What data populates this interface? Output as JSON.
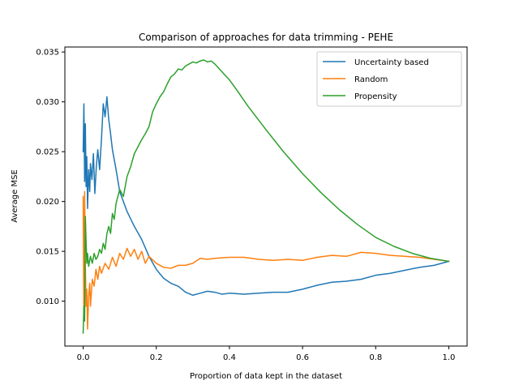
{
  "chart_data": {
    "type": "line",
    "title": "Comparison of approaches for data trimming - PEHE",
    "xlabel": "Proportion of data kept in the dataset",
    "ylabel": "Average MSE",
    "xlim": [
      -0.05,
      1.05
    ],
    "ylim": [
      0.0055,
      0.0355
    ],
    "xticks": [
      0.0,
      0.2,
      0.4,
      0.6,
      0.8,
      1.0
    ],
    "xtick_labels": [
      "0.0",
      "0.2",
      "0.4",
      "0.6",
      "0.8",
      "1.0"
    ],
    "yticks": [
      0.01,
      0.015,
      0.02,
      0.025,
      0.03,
      0.035
    ],
    "ytick_labels": [
      "0.010",
      "0.015",
      "0.020",
      "0.025",
      "0.030",
      "0.035"
    ],
    "grid": false,
    "legend_position": "top-right",
    "series": [
      {
        "name": "Uncertainty based",
        "color": "#1f77b4",
        "points": [
          [
            0.0,
            0.025
          ],
          [
            0.002,
            0.0298
          ],
          [
            0.004,
            0.022
          ],
          [
            0.006,
            0.0278
          ],
          [
            0.008,
            0.0215
          ],
          [
            0.01,
            0.0245
          ],
          [
            0.012,
            0.0193
          ],
          [
            0.015,
            0.0232
          ],
          [
            0.018,
            0.021
          ],
          [
            0.02,
            0.0238
          ],
          [
            0.024,
            0.0222
          ],
          [
            0.028,
            0.0248
          ],
          [
            0.032,
            0.0208
          ],
          [
            0.036,
            0.0235
          ],
          [
            0.04,
            0.0252
          ],
          [
            0.045,
            0.0232
          ],
          [
            0.05,
            0.0262
          ],
          [
            0.055,
            0.0298
          ],
          [
            0.06,
            0.0285
          ],
          [
            0.065,
            0.0305
          ],
          [
            0.07,
            0.0282
          ],
          [
            0.075,
            0.0268
          ],
          [
            0.08,
            0.0252
          ],
          [
            0.09,
            0.0232
          ],
          [
            0.1,
            0.021
          ],
          [
            0.12,
            0.019
          ],
          [
            0.14,
            0.0175
          ],
          [
            0.16,
            0.0162
          ],
          [
            0.18,
            0.0145
          ],
          [
            0.2,
            0.0132
          ],
          [
            0.22,
            0.0123
          ],
          [
            0.24,
            0.0118
          ],
          [
            0.26,
            0.0115
          ],
          [
            0.28,
            0.0109
          ],
          [
            0.3,
            0.0106
          ],
          [
            0.32,
            0.0108
          ],
          [
            0.34,
            0.011
          ],
          [
            0.36,
            0.0109
          ],
          [
            0.38,
            0.0107
          ],
          [
            0.4,
            0.0108
          ],
          [
            0.44,
            0.0107
          ],
          [
            0.48,
            0.0108
          ],
          [
            0.52,
            0.0109
          ],
          [
            0.56,
            0.0109
          ],
          [
            0.6,
            0.0112
          ],
          [
            0.64,
            0.0116
          ],
          [
            0.68,
            0.0119
          ],
          [
            0.72,
            0.012
          ],
          [
            0.76,
            0.0122
          ],
          [
            0.8,
            0.0126
          ],
          [
            0.84,
            0.0128
          ],
          [
            0.88,
            0.0131
          ],
          [
            0.92,
            0.0134
          ],
          [
            0.96,
            0.0136
          ],
          [
            1.0,
            0.014
          ]
        ]
      },
      {
        "name": "Random",
        "color": "#ff7f0e",
        "points": [
          [
            0.0,
            0.0205
          ],
          [
            0.002,
            0.0085
          ],
          [
            0.004,
            0.021
          ],
          [
            0.006,
            0.0135
          ],
          [
            0.008,
            0.0095
          ],
          [
            0.01,
            0.0112
          ],
          [
            0.012,
            0.0072
          ],
          [
            0.015,
            0.0105
          ],
          [
            0.018,
            0.0118
          ],
          [
            0.02,
            0.0095
          ],
          [
            0.025,
            0.0122
          ],
          [
            0.03,
            0.0115
          ],
          [
            0.035,
            0.0132
          ],
          [
            0.04,
            0.0122
          ],
          [
            0.045,
            0.0135
          ],
          [
            0.05,
            0.0128
          ],
          [
            0.06,
            0.0138
          ],
          [
            0.07,
            0.0132
          ],
          [
            0.08,
            0.0144
          ],
          [
            0.09,
            0.0135
          ],
          [
            0.1,
            0.0148
          ],
          [
            0.11,
            0.0142
          ],
          [
            0.12,
            0.0153
          ],
          [
            0.13,
            0.0145
          ],
          [
            0.14,
            0.0152
          ],
          [
            0.15,
            0.0142
          ],
          [
            0.16,
            0.015
          ],
          [
            0.17,
            0.0138
          ],
          [
            0.18,
            0.0145
          ],
          [
            0.2,
            0.0138
          ],
          [
            0.22,
            0.0134
          ],
          [
            0.24,
            0.0133
          ],
          [
            0.26,
            0.0136
          ],
          [
            0.28,
            0.0136
          ],
          [
            0.3,
            0.0138
          ],
          [
            0.32,
            0.0143
          ],
          [
            0.34,
            0.0142
          ],
          [
            0.36,
            0.0143
          ],
          [
            0.4,
            0.0144
          ],
          [
            0.44,
            0.0144
          ],
          [
            0.48,
            0.0142
          ],
          [
            0.52,
            0.0141
          ],
          [
            0.56,
            0.0142
          ],
          [
            0.6,
            0.0141
          ],
          [
            0.64,
            0.0144
          ],
          [
            0.68,
            0.0146
          ],
          [
            0.72,
            0.0145
          ],
          [
            0.76,
            0.0149
          ],
          [
            0.8,
            0.0148
          ],
          [
            0.84,
            0.0146
          ],
          [
            0.88,
            0.0145
          ],
          [
            0.92,
            0.0144
          ],
          [
            0.96,
            0.0142
          ],
          [
            1.0,
            0.014
          ]
        ]
      },
      {
        "name": "Propensity",
        "color": "#2ca02c",
        "points": [
          [
            0.0,
            0.0068
          ],
          [
            0.002,
            0.0095
          ],
          [
            0.004,
            0.008
          ],
          [
            0.006,
            0.0185
          ],
          [
            0.008,
            0.016
          ],
          [
            0.01,
            0.0138
          ],
          [
            0.012,
            0.0148
          ],
          [
            0.015,
            0.0135
          ],
          [
            0.02,
            0.0145
          ],
          [
            0.025,
            0.0138
          ],
          [
            0.03,
            0.0148
          ],
          [
            0.035,
            0.0142
          ],
          [
            0.04,
            0.0145
          ],
          [
            0.045,
            0.0152
          ],
          [
            0.05,
            0.0148
          ],
          [
            0.055,
            0.0158
          ],
          [
            0.06,
            0.0152
          ],
          [
            0.065,
            0.0168
          ],
          [
            0.07,
            0.0175
          ],
          [
            0.075,
            0.0168
          ],
          [
            0.08,
            0.0188
          ],
          [
            0.085,
            0.0182
          ],
          [
            0.09,
            0.0198
          ],
          [
            0.1,
            0.0212
          ],
          [
            0.11,
            0.0205
          ],
          [
            0.12,
            0.0225
          ],
          [
            0.13,
            0.0235
          ],
          [
            0.14,
            0.0248
          ],
          [
            0.15,
            0.0255
          ],
          [
            0.16,
            0.0262
          ],
          [
            0.17,
            0.0268
          ],
          [
            0.18,
            0.0275
          ],
          [
            0.19,
            0.029
          ],
          [
            0.2,
            0.0298
          ],
          [
            0.21,
            0.0305
          ],
          [
            0.22,
            0.031
          ],
          [
            0.23,
            0.0318
          ],
          [
            0.24,
            0.0325
          ],
          [
            0.25,
            0.0328
          ],
          [
            0.26,
            0.0333
          ],
          [
            0.27,
            0.0332
          ],
          [
            0.28,
            0.0336
          ],
          [
            0.29,
            0.0338
          ],
          [
            0.3,
            0.034
          ],
          [
            0.31,
            0.0339
          ],
          [
            0.32,
            0.0341
          ],
          [
            0.33,
            0.0342
          ],
          [
            0.34,
            0.034
          ],
          [
            0.35,
            0.0341
          ],
          [
            0.36,
            0.0338
          ],
          [
            0.37,
            0.0334
          ],
          [
            0.38,
            0.033
          ],
          [
            0.4,
            0.0322
          ],
          [
            0.42,
            0.0312
          ],
          [
            0.45,
            0.0296
          ],
          [
            0.5,
            0.0272
          ],
          [
            0.55,
            0.0249
          ],
          [
            0.6,
            0.0228
          ],
          [
            0.65,
            0.0209
          ],
          [
            0.7,
            0.0192
          ],
          [
            0.75,
            0.0177
          ],
          [
            0.8,
            0.0164
          ],
          [
            0.85,
            0.0155
          ],
          [
            0.9,
            0.0148
          ],
          [
            0.95,
            0.0143
          ],
          [
            1.0,
            0.014
          ]
        ]
      }
    ]
  }
}
